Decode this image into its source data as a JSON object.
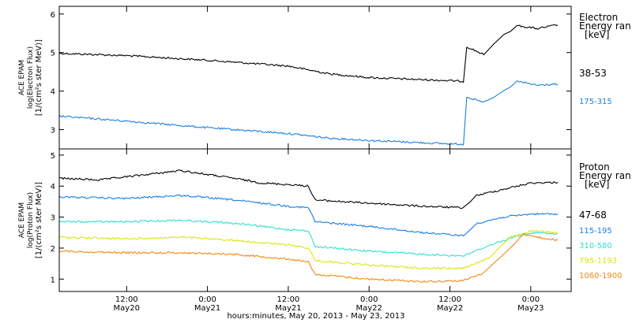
{
  "figure": {
    "xlabel": "hours:minutes, May 20, 2013 - May 23, 2013",
    "x_ticks": [
      {
        "time": "2013-05-20T12:00",
        "hm": "12:00",
        "day": "May20"
      },
      {
        "time": "2013-05-21T00:00",
        "hm": "0:00",
        "day": "May21"
      },
      {
        "time": "2013-05-21T12:00",
        "hm": "12:00",
        "day": "May21"
      },
      {
        "time": "2013-05-22T00:00",
        "hm": "0:00",
        "day": "May22"
      },
      {
        "time": "2013-05-22T12:00",
        "hm": "12:00",
        "day": "May22"
      },
      {
        "time": "2013-05-23T00:00",
        "hm": "0:00",
        "day": "May23"
      }
    ],
    "xlim": [
      "2013-05-20T02:00",
      "2013-05-23T06:00"
    ]
  },
  "chart_data": [
    {
      "type": "line",
      "panel": "electron",
      "ylabel_lines": [
        "ACE EPAM",
        "log(Electron Flux)",
        "[1/(cm²s ster MeV)]"
      ],
      "ylim": [
        2.5,
        6.2
      ],
      "y_ticks": [
        3,
        4,
        5,
        6
      ],
      "legend_title": [
        "Electron",
        "Energy ran",
        "[keV]"
      ],
      "series": [
        {
          "name": "38-53",
          "color": "#000000",
          "points": [
            [
              "2013-05-20T02:00",
              4.98
            ],
            [
              "2013-05-20T12:00",
              4.92
            ],
            [
              "2013-05-21T00:00",
              4.8
            ],
            [
              "2013-05-21T12:00",
              4.65
            ],
            [
              "2013-05-21T18:00",
              4.45
            ],
            [
              "2013-05-22T00:00",
              4.35
            ],
            [
              "2013-05-22T12:00",
              4.27
            ],
            [
              "2013-05-22T14:00",
              4.25
            ],
            [
              "2013-05-22T14:30",
              5.15
            ],
            [
              "2013-05-22T17:00",
              4.95
            ],
            [
              "2013-05-22T20:00",
              5.45
            ],
            [
              "2013-05-22T22:00",
              5.7
            ],
            [
              "2013-05-23T01:00",
              5.62
            ],
            [
              "2013-05-23T04:00",
              5.72
            ]
          ]
        },
        {
          "name": "175-315",
          "color": "#1a7fe0",
          "points": [
            [
              "2013-05-20T02:00",
              3.35
            ],
            [
              "2013-05-20T12:00",
              3.22
            ],
            [
              "2013-05-21T00:00",
              3.05
            ],
            [
              "2013-05-21T12:00",
              2.9
            ],
            [
              "2013-05-21T18:00",
              2.78
            ],
            [
              "2013-05-22T00:00",
              2.72
            ],
            [
              "2013-05-22T12:00",
              2.63
            ],
            [
              "2013-05-22T14:00",
              2.62
            ],
            [
              "2013-05-22T14:30",
              3.85
            ],
            [
              "2013-05-22T17:00",
              3.7
            ],
            [
              "2013-05-22T20:00",
              4.0
            ],
            [
              "2013-05-22T22:00",
              4.25
            ],
            [
              "2013-05-23T01:00",
              4.15
            ],
            [
              "2013-05-23T04:00",
              4.18
            ]
          ]
        }
      ]
    },
    {
      "type": "line",
      "panel": "proton",
      "ylabel_lines": [
        "ACE EPAM",
        "log(Proton Flux)",
        "[1/(cm²s ster MeV)]"
      ],
      "ylim": [
        0.6,
        5.2
      ],
      "y_ticks": [
        1,
        2,
        3,
        4,
        5
      ],
      "legend_title": [
        "Proton",
        "Energy ran",
        "[keV]"
      ],
      "series": [
        {
          "name": "47-68",
          "color": "#000000",
          "points": [
            [
              "2013-05-20T02:00",
              4.25
            ],
            [
              "2013-05-20T08:00",
              4.2
            ],
            [
              "2013-05-20T12:00",
              4.3
            ],
            [
              "2013-05-20T20:00",
              4.5
            ],
            [
              "2013-05-21T04:00",
              4.25
            ],
            [
              "2013-05-21T08:00",
              4.1
            ],
            [
              "2013-05-21T12:00",
              4.05
            ],
            [
              "2013-05-21T15:00",
              4.0
            ],
            [
              "2013-05-21T16:00",
              3.55
            ],
            [
              "2013-05-22T00:00",
              3.45
            ],
            [
              "2013-05-22T08:00",
              3.35
            ],
            [
              "2013-05-22T14:00",
              3.3
            ],
            [
              "2013-05-22T16:00",
              3.7
            ],
            [
              "2013-05-22T20:00",
              3.9
            ],
            [
              "2013-05-23T00:00",
              4.1
            ],
            [
              "2013-05-23T04:00",
              4.12
            ]
          ]
        },
        {
          "name": "115-195",
          "color": "#1a7fe0",
          "points": [
            [
              "2013-05-20T02:00",
              3.65
            ],
            [
              "2013-05-20T12:00",
              3.6
            ],
            [
              "2013-05-20T20:00",
              3.7
            ],
            [
              "2013-05-21T04:00",
              3.55
            ],
            [
              "2013-05-21T12:00",
              3.35
            ],
            [
              "2013-05-21T15:00",
              3.3
            ],
            [
              "2013-05-21T16:00",
              2.85
            ],
            [
              "2013-05-22T00:00",
              2.7
            ],
            [
              "2013-05-22T08:00",
              2.5
            ],
            [
              "2013-05-22T14:00",
              2.4
            ],
            [
              "2013-05-22T16:00",
              2.8
            ],
            [
              "2013-05-22T20:00",
              3.0
            ],
            [
              "2013-05-23T00:00",
              3.1
            ],
            [
              "2013-05-23T04:00",
              3.1
            ]
          ]
        },
        {
          "name": "310-580",
          "color": "#2ee0cc",
          "points": [
            [
              "2013-05-20T02:00",
              2.85
            ],
            [
              "2013-05-20T12:00",
              2.85
            ],
            [
              "2013-05-20T20:00",
              2.9
            ],
            [
              "2013-05-21T04:00",
              2.8
            ],
            [
              "2013-05-21T12:00",
              2.6
            ],
            [
              "2013-05-21T15:00",
              2.55
            ],
            [
              "2013-05-21T16:00",
              2.05
            ],
            [
              "2013-05-22T00:00",
              1.9
            ],
            [
              "2013-05-22T08:00",
              1.8
            ],
            [
              "2013-05-22T14:00",
              1.75
            ],
            [
              "2013-05-22T18:00",
              2.1
            ],
            [
              "2013-05-22T22:00",
              2.4
            ],
            [
              "2013-05-23T01:00",
              2.5
            ],
            [
              "2013-05-23T04:00",
              2.45
            ]
          ]
        },
        {
          "name": "795-1193",
          "color": "#d8e80a",
          "points": [
            [
              "2013-05-20T02:00",
              2.35
            ],
            [
              "2013-05-20T12:00",
              2.3
            ],
            [
              "2013-05-20T20:00",
              2.35
            ],
            [
              "2013-05-21T04:00",
              2.25
            ],
            [
              "2013-05-21T12:00",
              2.1
            ],
            [
              "2013-05-21T15:00",
              2.0
            ],
            [
              "2013-05-21T16:00",
              1.6
            ],
            [
              "2013-05-22T00:00",
              1.45
            ],
            [
              "2013-05-22T08:00",
              1.35
            ],
            [
              "2013-05-22T14:00",
              1.35
            ],
            [
              "2013-05-22T18:00",
              1.7
            ],
            [
              "2013-05-22T21:00",
              2.35
            ],
            [
              "2013-05-23T00:00",
              2.55
            ],
            [
              "2013-05-23T04:00",
              2.5
            ]
          ]
        },
        {
          "name": "1060-1900",
          "color": "#f08a14",
          "points": [
            [
              "2013-05-20T02:00",
              1.9
            ],
            [
              "2013-05-20T12:00",
              1.85
            ],
            [
              "2013-05-20T20:00",
              1.85
            ],
            [
              "2013-05-21T04:00",
              1.8
            ],
            [
              "2013-05-21T12:00",
              1.65
            ],
            [
              "2013-05-21T15:00",
              1.55
            ],
            [
              "2013-05-21T16:00",
              1.15
            ],
            [
              "2013-05-22T00:00",
              1.0
            ],
            [
              "2013-05-22T08:00",
              0.92
            ],
            [
              "2013-05-22T14:00",
              0.95
            ],
            [
              "2013-05-22T17:00",
              1.2
            ],
            [
              "2013-05-22T20:00",
              1.8
            ],
            [
              "2013-05-22T23:00",
              2.45
            ],
            [
              "2013-05-23T01:00",
              2.35
            ],
            [
              "2013-05-23T04:00",
              2.25
            ]
          ]
        }
      ]
    }
  ]
}
